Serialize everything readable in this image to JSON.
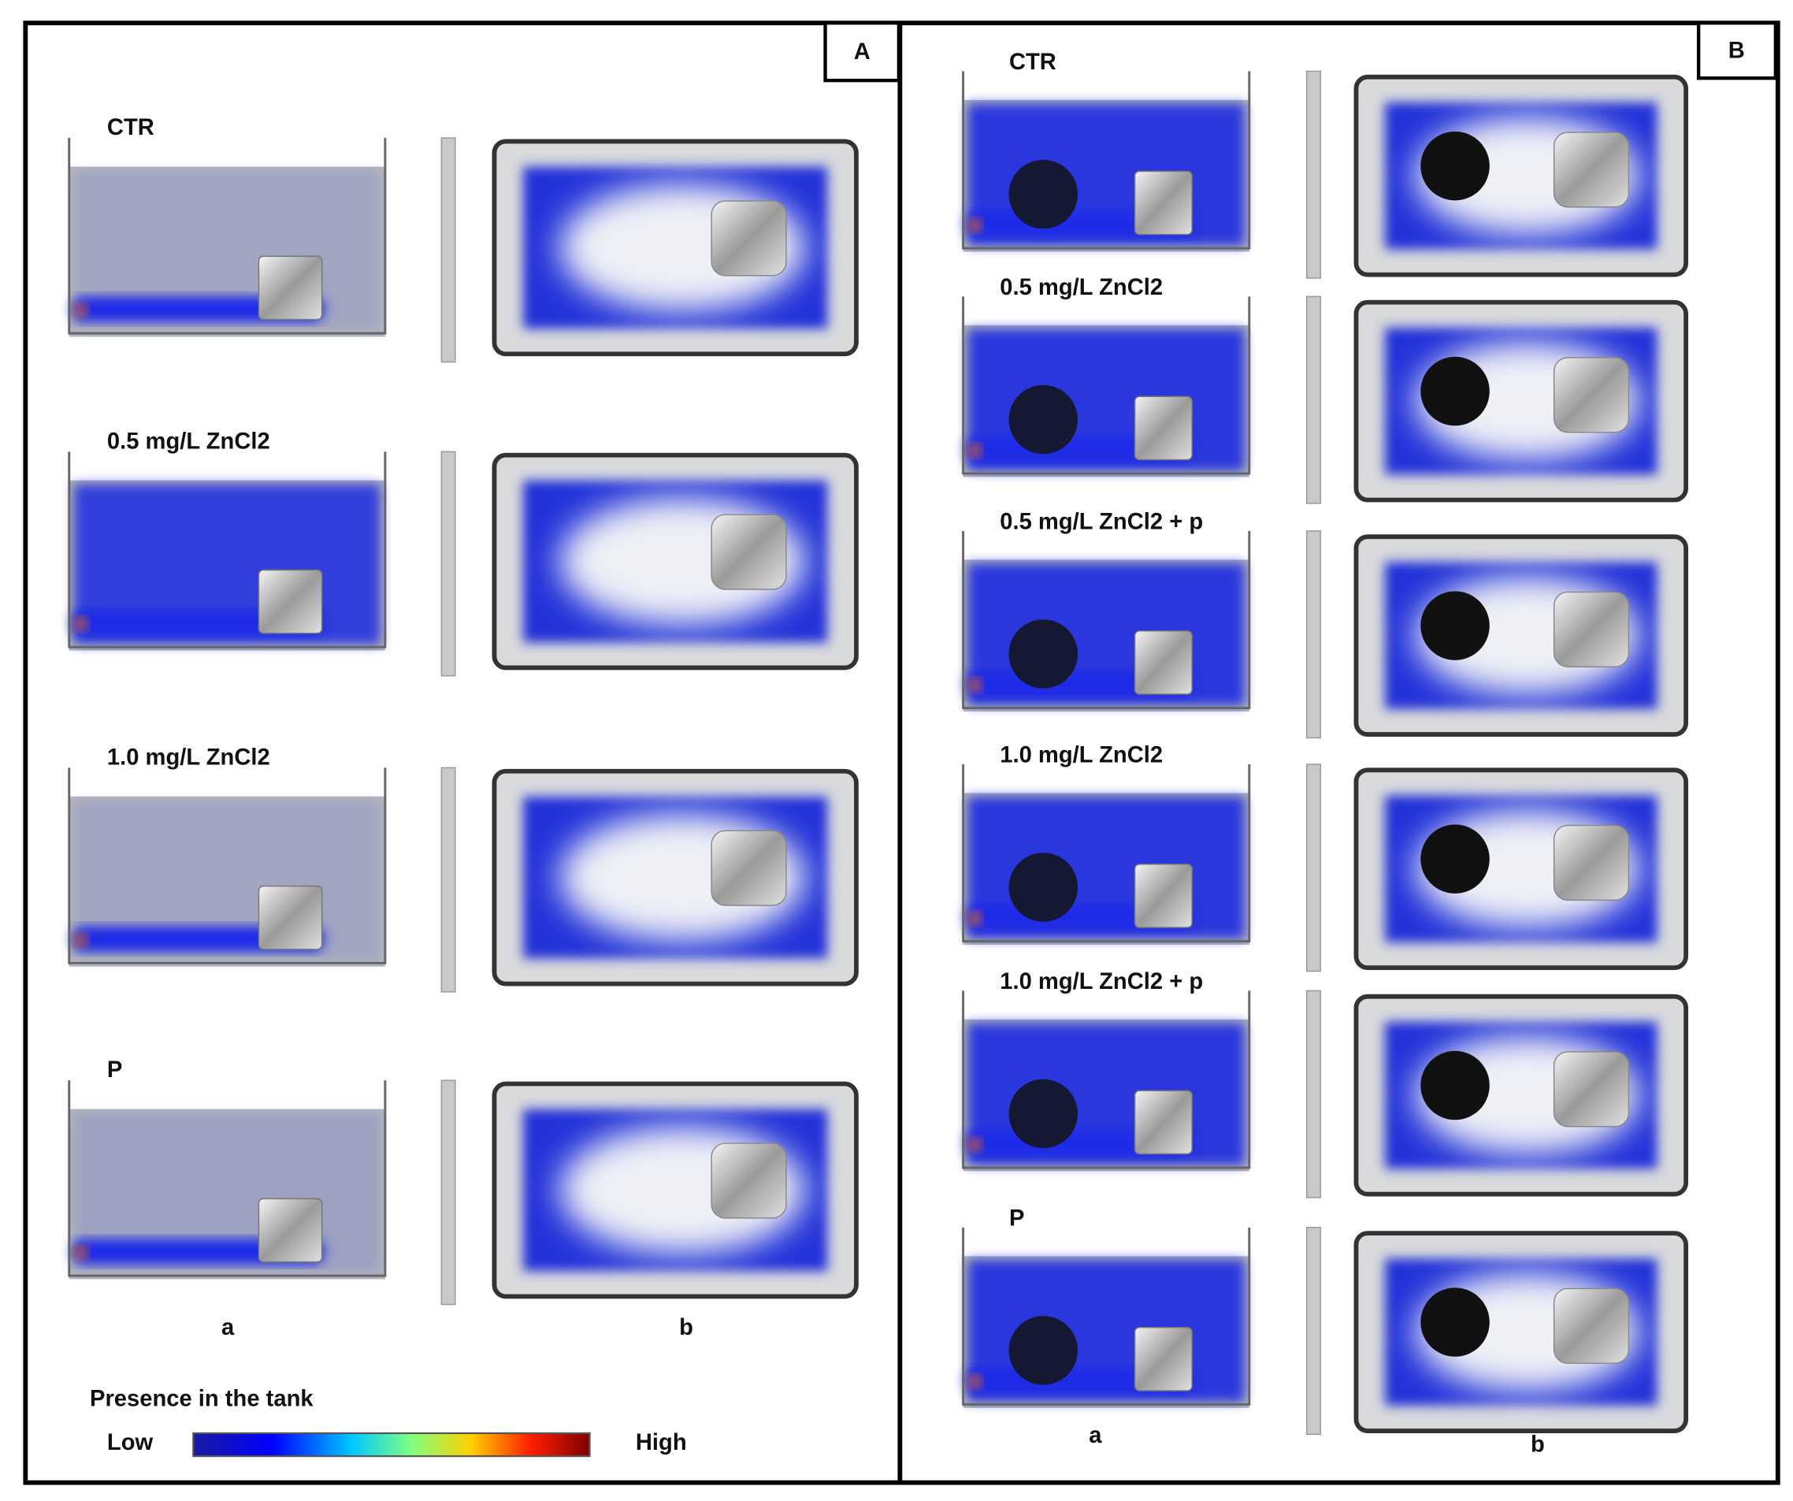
{
  "panel_a": {
    "label": "A",
    "rows": [
      "CTR",
      "0.5 mg/L ZnCl2",
      "1.0 mg/L ZnCl2",
      "P"
    ],
    "column_labels": [
      "a",
      "b"
    ]
  },
  "panel_b": {
    "label": "B",
    "rows": [
      "CTR",
      "0.5 mg/L ZnCl2",
      "0.5 mg/L ZnCl2 + p",
      "1.0 mg/L ZnCl2",
      "1.0 mg/L ZnCl2 + p",
      "P"
    ],
    "column_labels": [
      "a",
      "b"
    ]
  },
  "legend": {
    "title": "Presence in the tank",
    "low": "Low",
    "high": "High"
  }
}
